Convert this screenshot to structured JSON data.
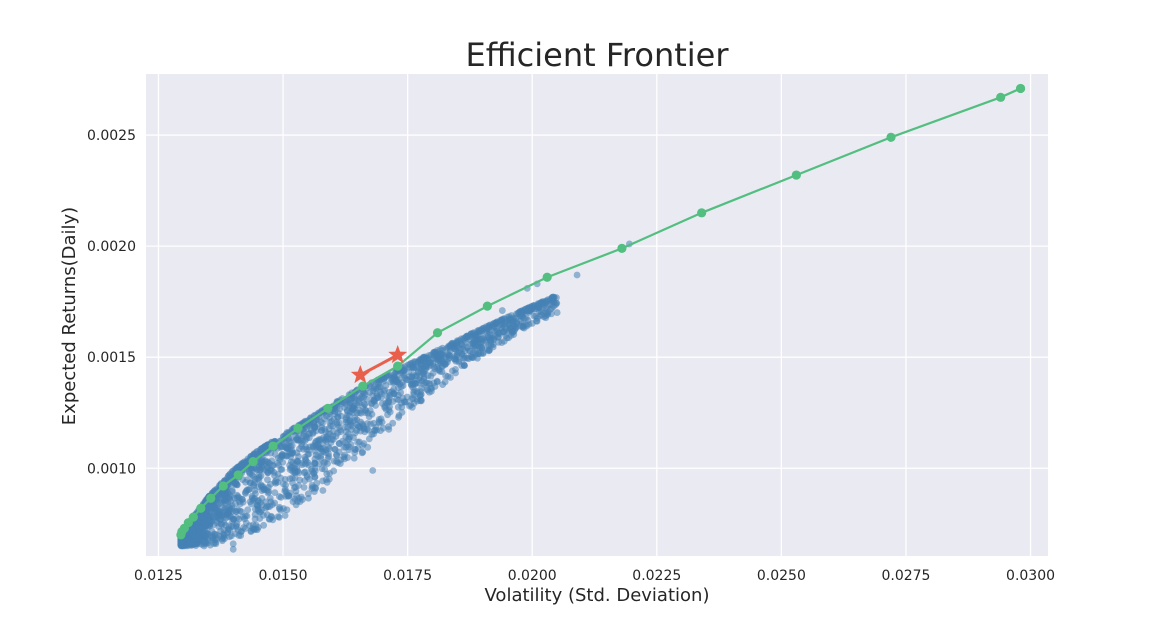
{
  "chart_data": {
    "type": "scatter",
    "title": "Efficient Frontier",
    "xlabel": "Volatility (Std. Deviation)",
    "ylabel": "Expected Returns(Daily)",
    "xlim": [
      0.01225,
      0.03035
    ],
    "ylim": [
      0.000605,
      0.002775
    ],
    "x_ticks": [
      0.0125,
      0.015,
      0.0175,
      0.02,
      0.0225,
      0.025,
      0.0275,
      0.03
    ],
    "x_tick_labels": [
      "0.0125",
      "0.0150",
      "0.0175",
      "0.0200",
      "0.0225",
      "0.0250",
      "0.0275",
      "0.0300"
    ],
    "y_ticks": [
      0.001,
      0.0015,
      0.002,
      0.0025
    ],
    "y_tick_labels": [
      "0.0010",
      "0.0015",
      "0.0020",
      "0.0025"
    ],
    "grid": true,
    "legend": "none",
    "style": {
      "background": "#eaeaf2",
      "grid_color": "#ffffff",
      "scatter_color": "#4682b4",
      "frontier_color": "#52be80",
      "star_color": "#e8604c"
    },
    "series": [
      {
        "role": "random-portfolios",
        "kind": "scatter",
        "generated_count": 2400,
        "band": {
          "sigma_points": [
            0.01295,
            0.0135,
            0.014,
            0.0145,
            0.015,
            0.0155,
            0.016,
            0.0165,
            0.017,
            0.0175,
            0.018,
            0.0185,
            0.019,
            0.0195,
            0.02,
            0.0205
          ],
          "upper_returns": [
            0.000705,
            0.00087,
            0.00099,
            0.00108,
            0.00115,
            0.00122,
            0.00129,
            0.001355,
            0.00141,
            0.001465,
            0.00152,
            0.001575,
            0.00163,
            0.00168,
            0.00173,
            0.00178
          ],
          "lower_returns": [
            0.00065,
            0.00065,
            0.00068,
            0.00072,
            0.00078,
            0.00086,
            0.00095,
            0.00104,
            0.00115,
            0.00125,
            0.00134,
            0.00143,
            0.00151,
            0.00158,
            0.00165,
            0.0017
          ]
        },
        "outliers": [
          {
            "x": 0.02195,
            "y": 0.00201
          },
          {
            "x": 0.0209,
            "y": 0.00187
          },
          {
            "x": 0.0201,
            "y": 0.00183
          },
          {
            "x": 0.0199,
            "y": 0.00181
          },
          {
            "x": 0.0194,
            "y": 0.00171
          },
          {
            "x": 0.0176,
            "y": 0.00138
          },
          {
            "x": 0.0168,
            "y": 0.00099
          },
          {
            "x": 0.0158,
            "y": 0.0009
          },
          {
            "x": 0.0152,
            "y": 0.00085
          },
          {
            "x": 0.0145,
            "y": 0.00081
          },
          {
            "x": 0.014,
            "y": 0.000635
          },
          {
            "x": 0.014,
            "y": 0.00066
          }
        ]
      },
      {
        "role": "efficient-frontier",
        "kind": "line+markers",
        "points": [
          {
            "x": 0.01295,
            "y": 0.0007
          },
          {
            "x": 0.01297,
            "y": 0.000715
          },
          {
            "x": 0.01302,
            "y": 0.00073
          },
          {
            "x": 0.0131,
            "y": 0.000755
          },
          {
            "x": 0.0132,
            "y": 0.00078
          },
          {
            "x": 0.01335,
            "y": 0.00082
          },
          {
            "x": 0.01355,
            "y": 0.000865
          },
          {
            "x": 0.0138,
            "y": 0.00092
          },
          {
            "x": 0.0141,
            "y": 0.00097
          },
          {
            "x": 0.0144,
            "y": 0.00103
          },
          {
            "x": 0.0148,
            "y": 0.0011
          },
          {
            "x": 0.0153,
            "y": 0.00118
          },
          {
            "x": 0.0159,
            "y": 0.00127
          },
          {
            "x": 0.0166,
            "y": 0.00137
          },
          {
            "x": 0.0173,
            "y": 0.00146
          },
          {
            "x": 0.0181,
            "y": 0.00161
          },
          {
            "x": 0.0191,
            "y": 0.00173
          },
          {
            "x": 0.0203,
            "y": 0.00186
          },
          {
            "x": 0.0218,
            "y": 0.00199
          },
          {
            "x": 0.0234,
            "y": 0.00215
          },
          {
            "x": 0.0253,
            "y": 0.00232
          },
          {
            "x": 0.0272,
            "y": 0.00249
          },
          {
            "x": 0.0294,
            "y": 0.00267
          },
          {
            "x": 0.0298,
            "y": 0.00271
          }
        ]
      },
      {
        "role": "optimal-portfolios",
        "kind": "line+star",
        "points": [
          {
            "x": 0.01655,
            "y": 0.00142
          },
          {
            "x": 0.0173,
            "y": 0.00151
          }
        ]
      }
    ]
  }
}
